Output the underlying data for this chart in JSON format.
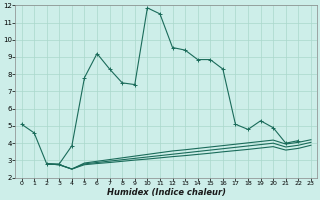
{
  "xlabel": "Humidex (Indice chaleur)",
  "bg_color": "#cdeee9",
  "grid_color": "#aad8cc",
  "line_color": "#1a6b5a",
  "xlim": [
    -0.5,
    23.5
  ],
  "ylim": [
    2,
    12
  ],
  "xticks": [
    0,
    1,
    2,
    3,
    4,
    5,
    6,
    7,
    8,
    9,
    10,
    11,
    12,
    13,
    14,
    15,
    16,
    17,
    18,
    19,
    20,
    21,
    22,
    23
  ],
  "yticks": [
    2,
    3,
    4,
    5,
    6,
    7,
    8,
    9,
    10,
    11,
    12
  ],
  "line1_x": [
    0,
    1,
    2,
    3,
    4,
    5,
    6,
    7,
    8,
    9,
    10,
    11,
    12,
    13,
    14,
    15,
    16,
    17,
    18,
    19,
    20,
    21,
    22
  ],
  "line1_y": [
    5.1,
    4.6,
    2.8,
    2.8,
    3.85,
    7.8,
    9.2,
    8.3,
    7.5,
    7.4,
    11.85,
    11.5,
    9.55,
    9.4,
    8.85,
    8.85,
    8.3,
    5.1,
    4.8,
    5.3,
    4.9,
    4.0,
    4.15
  ],
  "line2_x": [
    2,
    3,
    4,
    5,
    6,
    7,
    8,
    9,
    10,
    11,
    12,
    13,
    14,
    15,
    16,
    17,
    18,
    19,
    20,
    21,
    22,
    23
  ],
  "line2_y": [
    2.8,
    2.75,
    2.5,
    2.85,
    2.95,
    3.05,
    3.15,
    3.25,
    3.35,
    3.45,
    3.55,
    3.62,
    3.7,
    3.78,
    3.86,
    3.94,
    4.02,
    4.1,
    4.18,
    3.95,
    4.05,
    4.2
  ],
  "line3_x": [
    2,
    3,
    4,
    5,
    6,
    7,
    8,
    9,
    10,
    11,
    12,
    13,
    14,
    15,
    16,
    17,
    18,
    19,
    20,
    21,
    22,
    23
  ],
  "line3_y": [
    2.8,
    2.75,
    2.5,
    2.8,
    2.88,
    2.96,
    3.04,
    3.12,
    3.2,
    3.28,
    3.36,
    3.44,
    3.52,
    3.6,
    3.68,
    3.76,
    3.84,
    3.92,
    4.0,
    3.78,
    3.88,
    4.05
  ],
  "line4_x": [
    2,
    3,
    4,
    5,
    6,
    7,
    8,
    9,
    10,
    11,
    12,
    13,
    14,
    15,
    16,
    17,
    18,
    19,
    20,
    21,
    22,
    23
  ],
  "line4_y": [
    2.8,
    2.75,
    2.5,
    2.75,
    2.82,
    2.88,
    2.95,
    3.02,
    3.08,
    3.15,
    3.22,
    3.28,
    3.35,
    3.42,
    3.5,
    3.57,
    3.64,
    3.72,
    3.8,
    3.6,
    3.7,
    3.88
  ]
}
